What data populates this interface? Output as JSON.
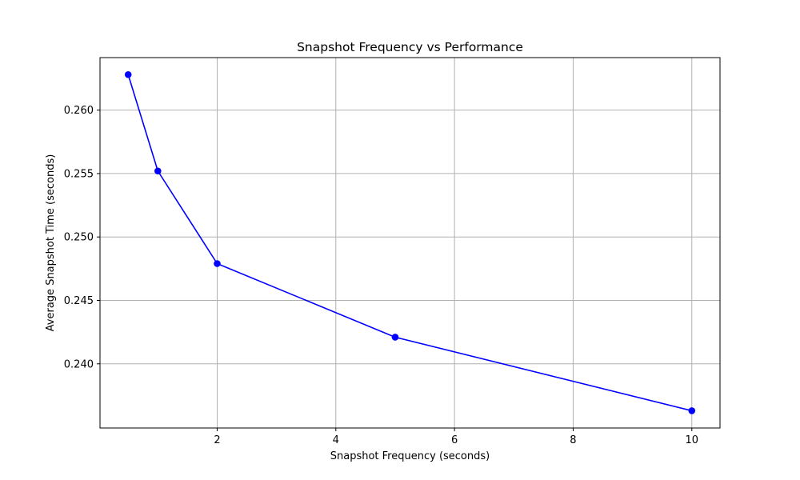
{
  "chart_data": {
    "type": "line",
    "title": "Snapshot Frequency vs Performance",
    "xlabel": "Snapshot Frequency (seconds)",
    "ylabel": "Average Snapshot Time (seconds)",
    "x": [
      0.5,
      1,
      2,
      5,
      10
    ],
    "series": [
      {
        "values": [
          0.2628,
          0.2552,
          0.2479,
          0.2421,
          0.2363
        ]
      }
    ],
    "xlim": [
      0.025,
      10.475
    ],
    "ylim": [
      0.23494,
      0.26414
    ],
    "xticks": [
      2,
      4,
      6,
      8,
      10
    ],
    "xtick_labels": [
      "2",
      "4",
      "6",
      "8",
      "10"
    ],
    "yticks": [
      0.24,
      0.245,
      0.25,
      0.255,
      0.26
    ],
    "ytick_labels": [
      "0.240",
      "0.245",
      "0.250",
      "0.255",
      "0.260"
    ],
    "grid": true,
    "legend": false,
    "marker": "circle",
    "line_color": "#0000ff",
    "grid_color": "#b0b0b0"
  }
}
